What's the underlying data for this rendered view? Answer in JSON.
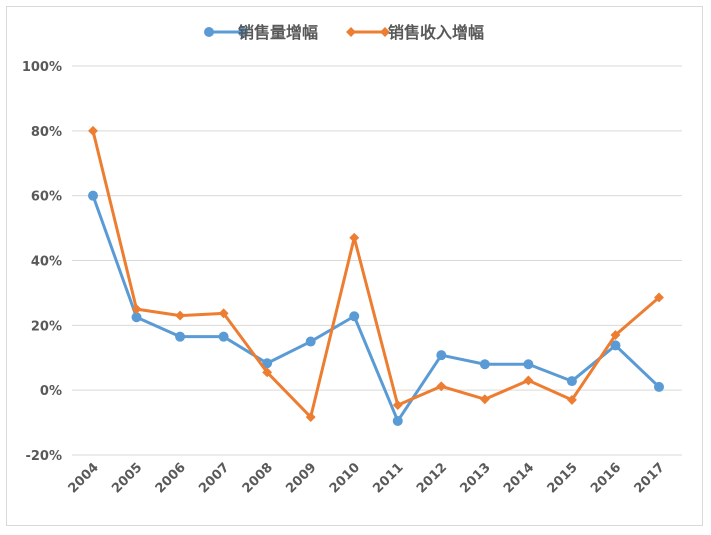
{
  "chart_data": {
    "type": "line",
    "title": "",
    "xlabel": "",
    "ylabel": "",
    "categories": [
      "2004",
      "2005",
      "2006",
      "2007",
      "2008",
      "2009",
      "2010",
      "2011",
      "2012",
      "2013",
      "2014",
      "2015",
      "2016",
      "2017"
    ],
    "ylim": [
      -20,
      100
    ],
    "yticks": [
      -20,
      0,
      20,
      40,
      60,
      80,
      100
    ],
    "ytick_labels": [
      "-20%",
      "0%",
      "20%",
      "40%",
      "60%",
      "80%",
      "100%"
    ],
    "grid": true,
    "legend_position": "top",
    "series": [
      {
        "name": "销售量增幅",
        "color": "#5b9bd5",
        "marker": "circle",
        "values": [
          60,
          22.5,
          16.5,
          16.5,
          8.3,
          15,
          22.8,
          -9.5,
          10.8,
          8,
          8,
          2.8,
          13.8,
          1
        ]
      },
      {
        "name": "销售收入增幅",
        "color": "#ed7d31",
        "marker": "diamond",
        "values": [
          80,
          25,
          23,
          23.7,
          5.5,
          -8.3,
          47,
          -4.6,
          1.2,
          -2.8,
          3,
          -3,
          17,
          28.6
        ]
      }
    ]
  }
}
